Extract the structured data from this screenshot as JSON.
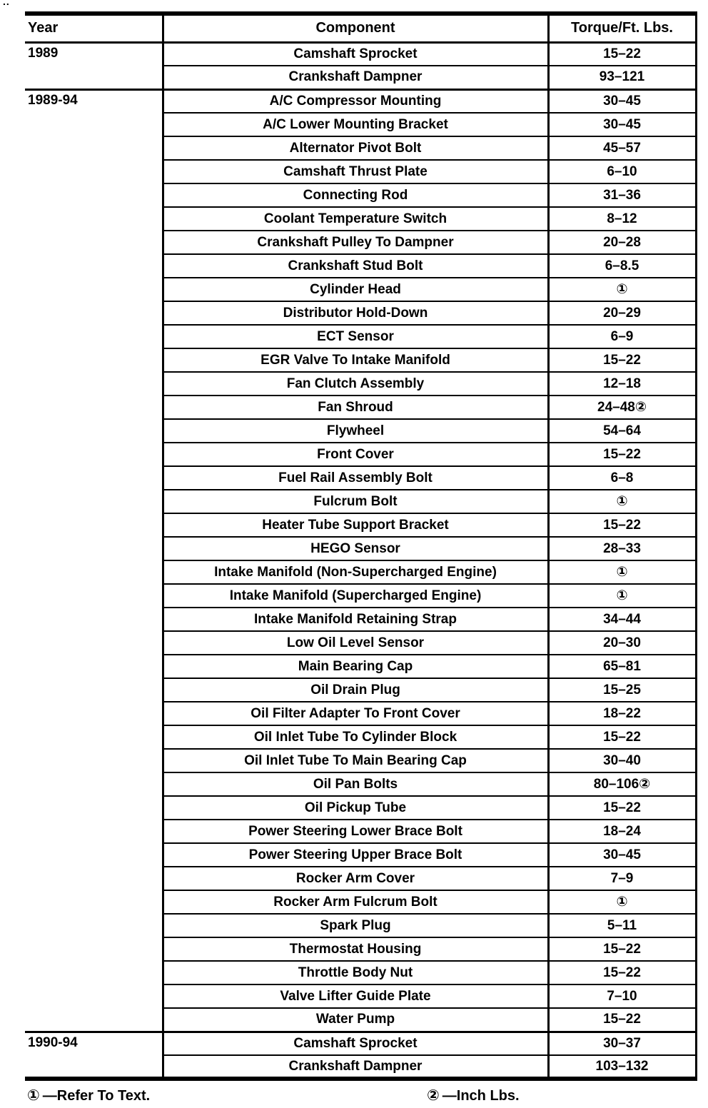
{
  "page": {
    "scan_artifact": ".."
  },
  "table": {
    "headers": {
      "year": "Year",
      "component": "Component",
      "torque": "Torque/Ft. Lbs."
    },
    "sections": [
      {
        "year": "1989",
        "rows": [
          {
            "component": "Camshaft Sprocket",
            "torque": "15–22"
          },
          {
            "component": "Crankshaft Dampner",
            "torque": "93–121"
          }
        ]
      },
      {
        "year": "1989-94",
        "rows": [
          {
            "component": "A/C Compressor Mounting",
            "torque": "30–45"
          },
          {
            "component": "A/C Lower Mounting Bracket",
            "torque": "30–45"
          },
          {
            "component": "Alternator Pivot Bolt",
            "torque": "45–57"
          },
          {
            "component": "Camshaft Thrust Plate",
            "torque": "6–10"
          },
          {
            "component": "Connecting Rod",
            "torque": "31–36"
          },
          {
            "component": "Coolant Temperature Switch",
            "torque": "8–12"
          },
          {
            "component": "Crankshaft Pulley To Dampner",
            "torque": "20–28"
          },
          {
            "component": "Crankshaft Stud Bolt",
            "torque": "6–8.5"
          },
          {
            "component": "Cylinder Head",
            "torque": "①"
          },
          {
            "component": "Distributor Hold-Down",
            "torque": "20–29"
          },
          {
            "component": "ECT Sensor",
            "torque": "6–9"
          },
          {
            "component": "EGR Valve To Intake Manifold",
            "torque": "15–22"
          },
          {
            "component": "Fan Clutch Assembly",
            "torque": "12–18"
          },
          {
            "component": "Fan Shroud",
            "torque": "24–48②"
          },
          {
            "component": "Flywheel",
            "torque": "54–64"
          },
          {
            "component": "Front Cover",
            "torque": "15–22"
          },
          {
            "component": "Fuel Rail Assembly Bolt",
            "torque": "6–8"
          },
          {
            "component": "Fulcrum Bolt",
            "torque": "①"
          },
          {
            "component": "Heater Tube Support Bracket",
            "torque": "15–22"
          },
          {
            "component": "HEGO Sensor",
            "torque": "28–33"
          },
          {
            "component": "Intake Manifold (Non-Supercharged Engine)",
            "torque": "①"
          },
          {
            "component": "Intake Manifold (Supercharged Engine)",
            "torque": "①"
          },
          {
            "component": "Intake Manifold Retaining Strap",
            "torque": "34–44"
          },
          {
            "component": "Low Oil Level Sensor",
            "torque": "20–30"
          },
          {
            "component": "Main Bearing Cap",
            "torque": "65–81"
          },
          {
            "component": "Oil Drain Plug",
            "torque": "15–25"
          },
          {
            "component": "Oil Filter Adapter To Front Cover",
            "torque": "18–22"
          },
          {
            "component": "Oil Inlet Tube To Cylinder Block",
            "torque": "15–22"
          },
          {
            "component": "Oil Inlet Tube To Main Bearing Cap",
            "torque": "30–40"
          },
          {
            "component": "Oil Pan Bolts",
            "torque": "80–106②"
          },
          {
            "component": "Oil Pickup Tube",
            "torque": "15–22"
          },
          {
            "component": "Power Steering Lower Brace Bolt",
            "torque": "18–24"
          },
          {
            "component": "Power Steering Upper Brace Bolt",
            "torque": "30–45"
          },
          {
            "component": "Rocker Arm Cover",
            "torque": "7–9"
          },
          {
            "component": "Rocker Arm Fulcrum Bolt",
            "torque": "①"
          },
          {
            "component": "Spark Plug",
            "torque": "5–11"
          },
          {
            "component": "Thermostat Housing",
            "torque": "15–22"
          },
          {
            "component": "Throttle Body Nut",
            "torque": "15–22"
          },
          {
            "component": "Valve Lifter Guide Plate",
            "torque": "7–10"
          },
          {
            "component": "Water Pump",
            "torque": "15–22"
          }
        ]
      },
      {
        "year": "1990-94",
        "rows": [
          {
            "component": "Camshaft Sprocket",
            "torque": "30–37"
          },
          {
            "component": "Crankshaft Dampner",
            "torque": "103–132"
          }
        ]
      }
    ]
  },
  "footnotes": [
    {
      "marker": "①",
      "text": "—Refer To Text."
    },
    {
      "marker": "②",
      "text": "—Inch Lbs."
    }
  ],
  "colors": {
    "ink": "#000000",
    "paper": "#ffffff"
  }
}
